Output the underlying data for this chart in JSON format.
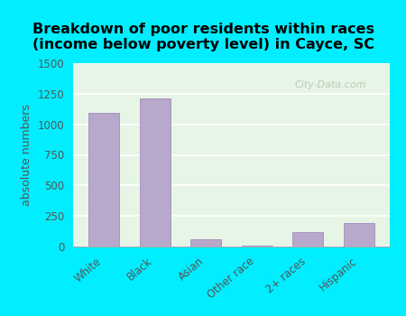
{
  "title": "Breakdown of poor residents within races\n(income below poverty level) in Cayce, SC",
  "categories": [
    "White",
    "Black",
    "Asian",
    "Other race",
    "2+ races",
    "Hispanic"
  ],
  "values": [
    1090,
    1210,
    60,
    5,
    120,
    190
  ],
  "bar_color": "#b8a8cc",
  "bar_edge_color": "#9980b8",
  "ylabel": "absolute numbers",
  "ylim": [
    0,
    1500
  ],
  "yticks": [
    0,
    250,
    500,
    750,
    1000,
    1250,
    1500
  ],
  "bg_outer": "#00eeff",
  "bg_plot": "#e6f5e6",
  "title_fontsize": 11.5,
  "title_fontweight": "bold",
  "ylabel_color": "#555555",
  "tick_color": "#555555",
  "watermark": "City-Data.com"
}
